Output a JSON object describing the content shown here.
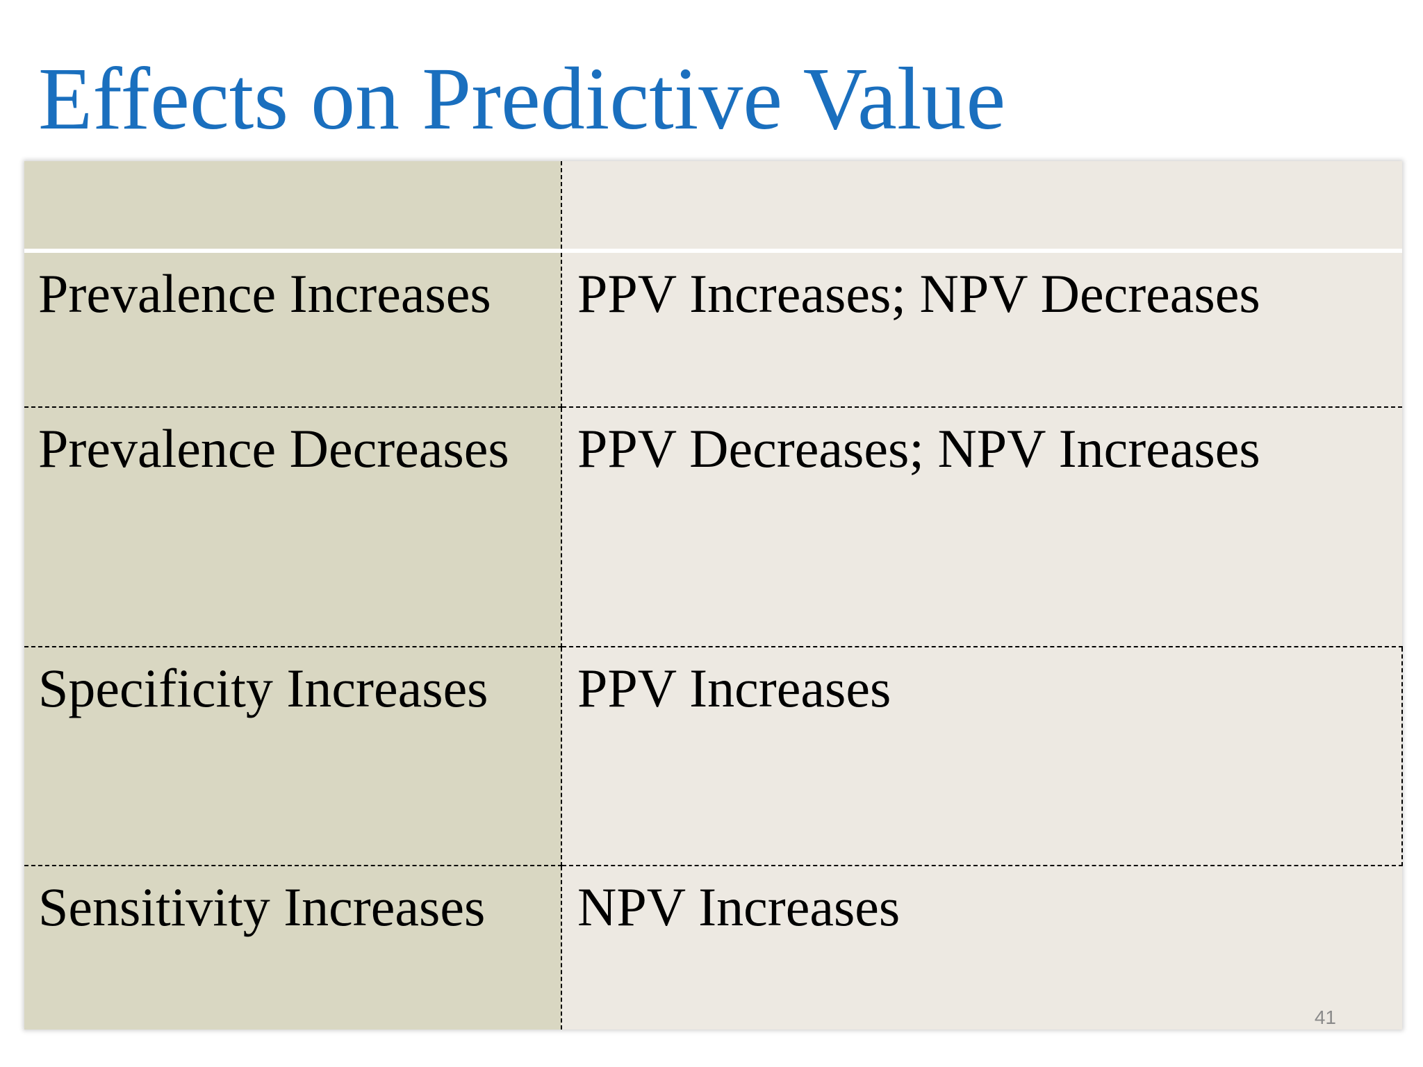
{
  "slide": {
    "title": "Effects on Predictive Value",
    "page_number": "41"
  },
  "table": {
    "header": [
      "",
      ""
    ],
    "rows": [
      {
        "condition": "Prevalence Increases",
        "effect": "PPV Increases; NPV Decreases"
      },
      {
        "condition": "Prevalence Decreases",
        "effect": "PPV Decreases; NPV Increases"
      },
      {
        "condition": "Specificity Increases",
        "effect": "PPV Increases"
      },
      {
        "condition": "Sensitivity Increases",
        "effect": "NPV Increases"
      }
    ]
  },
  "colors": {
    "title": "#1a6fbe",
    "first_column": "#d9d7c2",
    "second_column": "#ede9e2",
    "page_number": "#8a8a8a"
  }
}
